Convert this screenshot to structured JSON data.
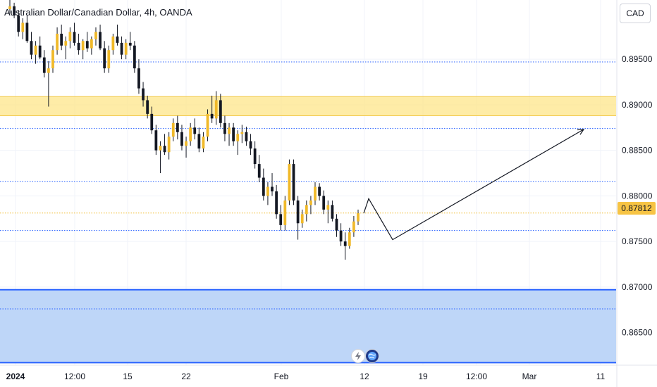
{
  "title": "Australian Dollar/Canadian Dollar, 4h, OANDA",
  "currency_label": "CAD",
  "last_price_label": "0.87812",
  "colors": {
    "candle": "#f0b929",
    "wick": "#131722",
    "dark_candle": "#131722",
    "resistance_zone": "#fde68a",
    "support_zone": "#bbd4f8",
    "support_border": "#2962ff",
    "dotted_level": "#2962ff",
    "last_price_line": "#f0b929",
    "projection": "#131722"
  },
  "icons": [
    "lightning-icon",
    "globe-icon"
  ],
  "chart_data": {
    "type": "candlestick",
    "title": "Australian Dollar/Canadian Dollar, 4h, OANDA",
    "ylim": [
      0.8615,
      0.9015
    ],
    "y_ticks": [
      {
        "value": 0.895,
        "label": "0.89500"
      },
      {
        "value": 0.89,
        "label": "0.89000"
      },
      {
        "value": 0.885,
        "label": "0.88500"
      },
      {
        "value": 0.88,
        "label": "0.88000"
      },
      {
        "value": 0.875,
        "label": "0.87500"
      },
      {
        "value": 0.87,
        "label": "0.87000"
      },
      {
        "value": 0.865,
        "label": "0.86500"
      }
    ],
    "x_labels": [
      "2024",
      "12:00",
      "15",
      "22",
      "Feb",
      "12",
      "19",
      "12:00",
      "Mar",
      "11"
    ],
    "last_price": 0.87812,
    "horizontal_levels": [
      0.8947,
      0.8874,
      0.8816,
      0.8762,
      0.8676
    ],
    "zones": [
      {
        "from": 0.8888,
        "to": 0.8909,
        "kind": "resistance"
      },
      {
        "from": 0.8617,
        "to": 0.8697,
        "kind": "support"
      }
    ],
    "projection": [
      {
        "bar": 516,
        "price": 0.8781
      },
      {
        "bar": 523,
        "price": 0.8797
      },
      {
        "bar": 557,
        "price": 0.8752
      },
      {
        "bar": 828,
        "price": 0.8873
      }
    ],
    "ohlc": [
      [
        0.9005,
        0.9015,
        0.9,
        0.9008
      ],
      [
        0.9008,
        0.9012,
        0.8995,
        0.8998
      ],
      [
        0.8998,
        0.9004,
        0.8975,
        0.898
      ],
      [
        0.898,
        0.8995,
        0.8972,
        0.899
      ],
      [
        0.899,
        0.8998,
        0.8968,
        0.897
      ],
      [
        0.897,
        0.898,
        0.895,
        0.8955
      ],
      [
        0.8955,
        0.897,
        0.8945,
        0.8965
      ],
      [
        0.8965,
        0.8975,
        0.895,
        0.8952
      ],
      [
        0.8952,
        0.896,
        0.893,
        0.8935
      ],
      [
        0.8935,
        0.8948,
        0.8898,
        0.894
      ],
      [
        0.894,
        0.8965,
        0.8935,
        0.896
      ],
      [
        0.896,
        0.8985,
        0.8955,
        0.8978
      ],
      [
        0.8978,
        0.8988,
        0.896,
        0.8965
      ],
      [
        0.8965,
        0.8975,
        0.895,
        0.897
      ],
      [
        0.897,
        0.8985,
        0.8962,
        0.898
      ],
      [
        0.898,
        0.899,
        0.8965,
        0.8968
      ],
      [
        0.8968,
        0.8978,
        0.8955,
        0.896
      ],
      [
        0.896,
        0.8972,
        0.895,
        0.897
      ],
      [
        0.897,
        0.898,
        0.8958,
        0.8962
      ],
      [
        0.8962,
        0.8975,
        0.8955,
        0.8972
      ],
      [
        0.8972,
        0.8985,
        0.8965,
        0.898
      ],
      [
        0.898,
        0.8988,
        0.896,
        0.8962
      ],
      [
        0.8962,
        0.897,
        0.8935,
        0.894
      ],
      [
        0.894,
        0.8965,
        0.8935,
        0.896
      ],
      [
        0.896,
        0.8978,
        0.8955,
        0.8975
      ],
      [
        0.8975,
        0.8988,
        0.8965,
        0.8968
      ],
      [
        0.8968,
        0.8975,
        0.895,
        0.8955
      ],
      [
        0.8955,
        0.8972,
        0.895,
        0.8968
      ],
      [
        0.8968,
        0.898,
        0.896,
        0.8965
      ],
      [
        0.8965,
        0.897,
        0.8935,
        0.894
      ],
      [
        0.894,
        0.895,
        0.8912,
        0.8918
      ],
      [
        0.8918,
        0.8925,
        0.8898,
        0.8905
      ],
      [
        0.8905,
        0.891,
        0.8885,
        0.889
      ],
      [
        0.889,
        0.8898,
        0.8868,
        0.8872
      ],
      [
        0.8872,
        0.8878,
        0.8845,
        0.885
      ],
      [
        0.885,
        0.886,
        0.8825,
        0.8855
      ],
      [
        0.8855,
        0.8868,
        0.8845,
        0.8848
      ],
      [
        0.8848,
        0.887,
        0.884,
        0.8865
      ],
      [
        0.8865,
        0.8885,
        0.886,
        0.888
      ],
      [
        0.888,
        0.8888,
        0.8862,
        0.887
      ],
      [
        0.887,
        0.8878,
        0.885,
        0.8855
      ],
      [
        0.8855,
        0.8865,
        0.8842,
        0.886
      ],
      [
        0.886,
        0.888,
        0.8855,
        0.8875
      ],
      [
        0.8875,
        0.8885,
        0.8862,
        0.8868
      ],
      [
        0.8868,
        0.8875,
        0.8848,
        0.8852
      ],
      [
        0.8852,
        0.887,
        0.8848,
        0.8865
      ],
      [
        0.8865,
        0.8895,
        0.886,
        0.889
      ],
      [
        0.889,
        0.891,
        0.888,
        0.8885
      ],
      [
        0.8885,
        0.8915,
        0.8878,
        0.8905
      ],
      [
        0.8905,
        0.8912,
        0.8875,
        0.888
      ],
      [
        0.888,
        0.8888,
        0.886,
        0.8868
      ],
      [
        0.8868,
        0.888,
        0.8855,
        0.8875
      ],
      [
        0.8875,
        0.888,
        0.8855,
        0.886
      ],
      [
        0.886,
        0.8872,
        0.8845,
        0.8868
      ],
      [
        0.8868,
        0.8878,
        0.8858,
        0.887
      ],
      [
        0.887,
        0.8876,
        0.8855,
        0.886
      ],
      [
        0.886,
        0.8868,
        0.8845,
        0.8852
      ],
      [
        0.8852,
        0.886,
        0.883,
        0.8835
      ],
      [
        0.8835,
        0.8845,
        0.8815,
        0.882
      ],
      [
        0.882,
        0.883,
        0.8795,
        0.88
      ],
      [
        0.88,
        0.8815,
        0.879,
        0.881
      ],
      [
        0.881,
        0.8825,
        0.88,
        0.8805
      ],
      [
        0.8805,
        0.8812,
        0.8775,
        0.878
      ],
      [
        0.878,
        0.879,
        0.8762,
        0.8768
      ],
      [
        0.8768,
        0.88,
        0.8762,
        0.8795
      ],
      [
        0.8795,
        0.884,
        0.879,
        0.8835
      ],
      [
        0.8835,
        0.884,
        0.879,
        0.8795
      ],
      [
        0.8795,
        0.88,
        0.8752,
        0.877
      ],
      [
        0.877,
        0.8785,
        0.8765,
        0.878
      ],
      [
        0.878,
        0.8795,
        0.8772,
        0.879
      ],
      [
        0.879,
        0.88,
        0.878,
        0.8795
      ],
      [
        0.8795,
        0.8815,
        0.879,
        0.881
      ],
      [
        0.881,
        0.8814,
        0.8795,
        0.88
      ],
      [
        0.88,
        0.8806,
        0.878,
        0.8785
      ],
      [
        0.8785,
        0.8795,
        0.877,
        0.879
      ],
      [
        0.879,
        0.8795,
        0.8772,
        0.8775
      ],
      [
        0.8775,
        0.878,
        0.8755,
        0.8762
      ],
      [
        0.8762,
        0.877,
        0.8745,
        0.875
      ],
      [
        0.875,
        0.876,
        0.873,
        0.8745
      ],
      [
        0.8745,
        0.8765,
        0.8742,
        0.876
      ],
      [
        0.876,
        0.8778,
        0.8755,
        0.8772
      ],
      [
        0.8772,
        0.8785,
        0.8768,
        0.8781
      ]
    ]
  }
}
